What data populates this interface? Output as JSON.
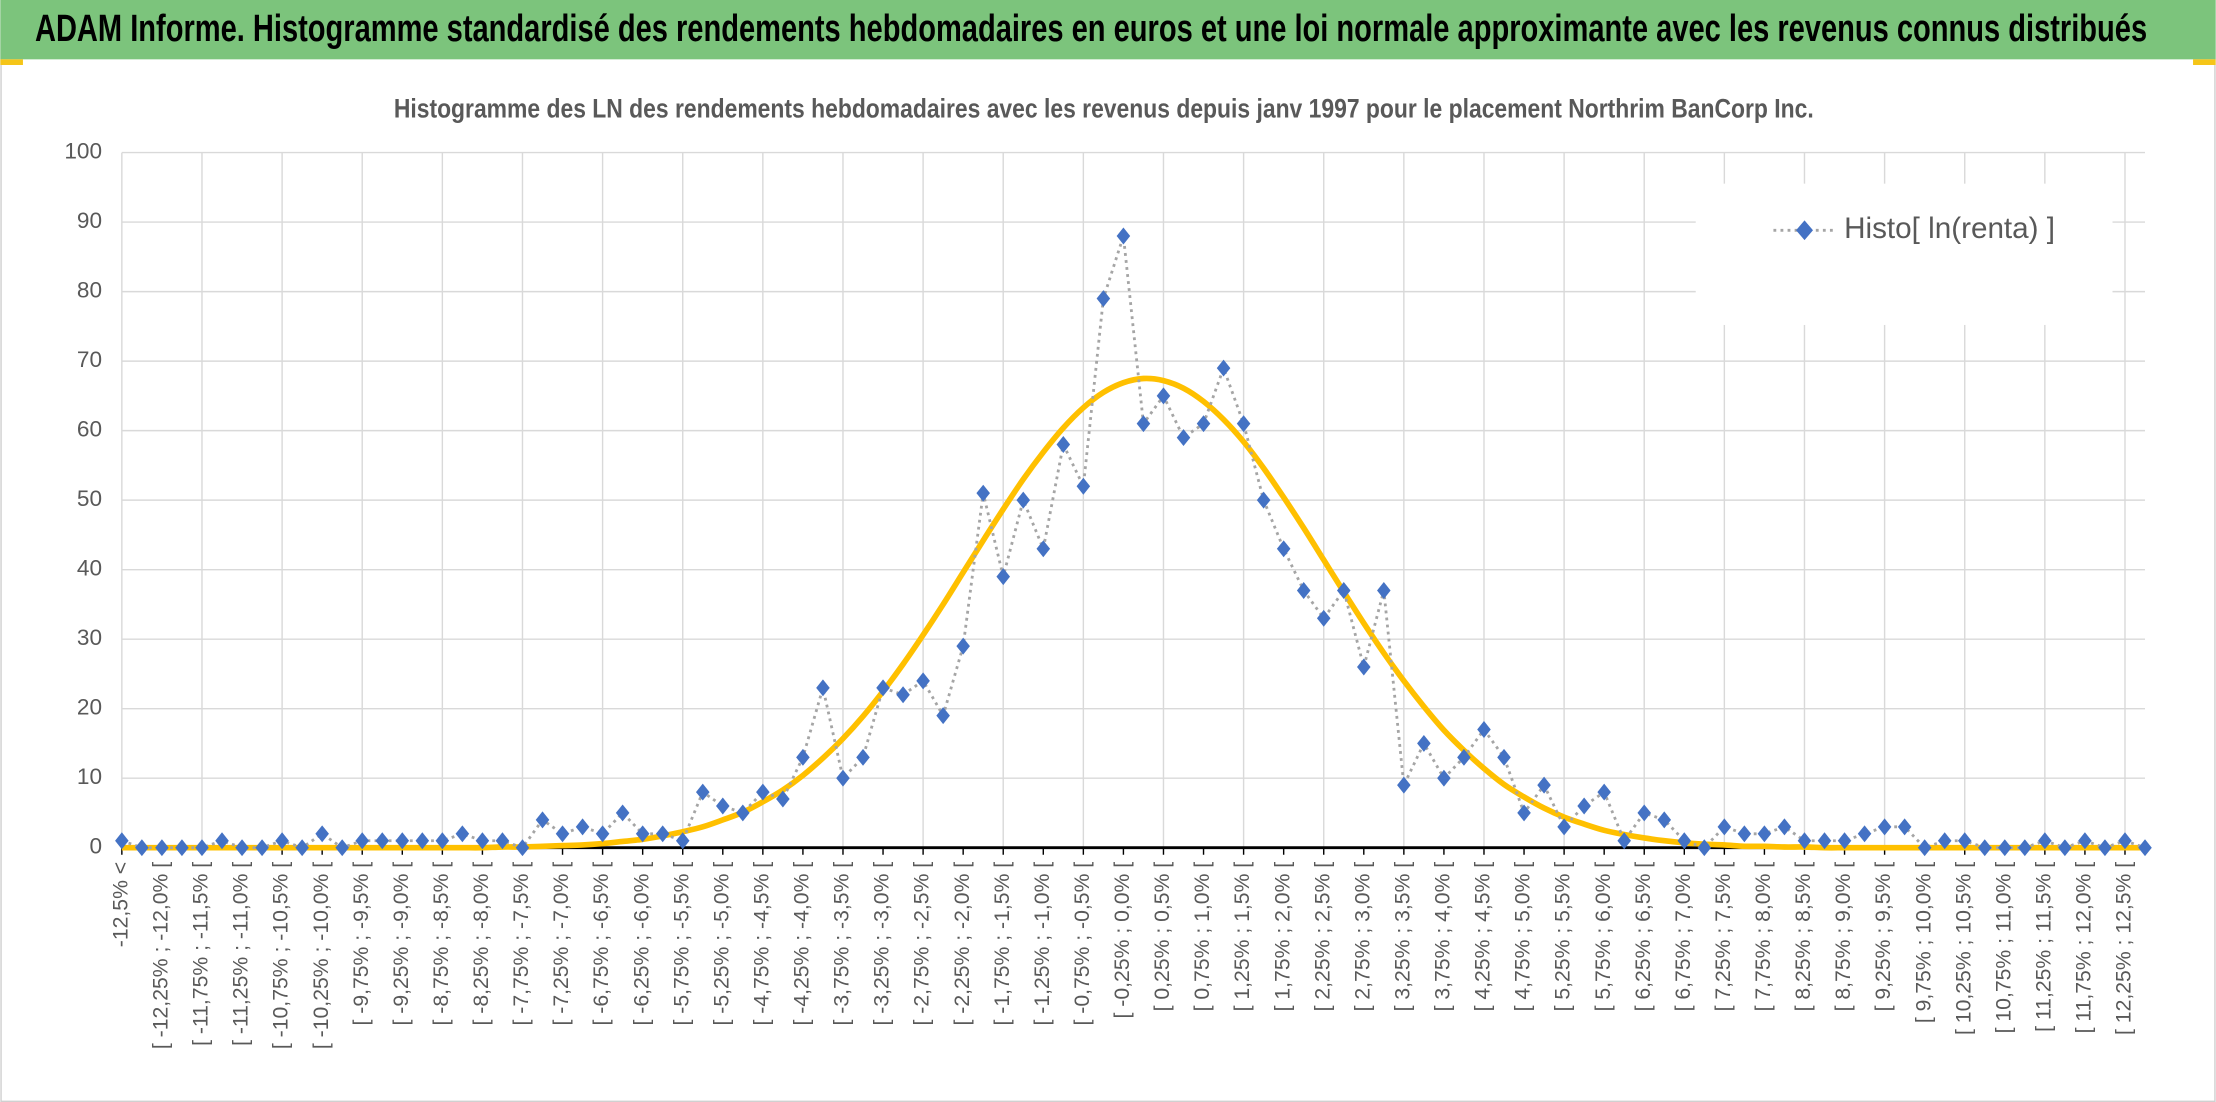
{
  "chart_data": {
    "type": "line",
    "header": "ADAM Informe. Histogramme standardisé des rendements hebdomadaires en euros et une loi normale approximante avec les revenus connus distribués",
    "title": "Histogramme des LN des rendements hebdomadaires avec les revenus depuis janv 1997 pour le placement Northrim BanCorp Inc.",
    "categories": [
      "-12,5% <",
      null,
      "[ -12,25% ; -12,0% [",
      null,
      "[ -11,75% ; -11,5% [",
      null,
      "[ -11,25% ; -11,0% [",
      null,
      "[ -10,75% ; -10,5% [",
      null,
      "[ -10,25% ; -10,0% [",
      null,
      "[ -9,75% ; -9,5% [",
      null,
      "[ -9,25% ; -9,0% [",
      null,
      "[ -8,75% ; -8,5% [",
      null,
      "[ -8,25% ; -8,0% [",
      null,
      "[ -7,75% ; -7,5% [",
      null,
      "[ -7,25% ; -7,0% [",
      null,
      "[ -6,75% ; -6,5% [",
      null,
      "[ -6,25% ; -6,0% [",
      null,
      "[ -5,75% ; -5,5% [",
      null,
      "[ -5,25% ; -5,0% [",
      null,
      "[ -4,75% ; -4,5% [",
      null,
      "[ -4,25% ; -4,0% [",
      null,
      "[ -3,75% ; -3,5% [",
      null,
      "[ -3,25% ; -3,0% [",
      null,
      "[ -2,75% ; -2,5% [",
      null,
      "[ -2,25% ; -2,0% [",
      null,
      "[ -1,75% ; -1,5% [",
      null,
      "[ -1,25% ; -1,0% [",
      null,
      "[ -0,75% ; -0,5% [",
      null,
      "[ -0,25% ; 0,0% [",
      null,
      "[ 0,25% ; 0,5% [",
      null,
      "[ 0,75% ; 1,0% [",
      null,
      "[ 1,25% ; 1,5% [",
      null,
      "[ 1,75% ; 2,0% [",
      null,
      "[ 2,25% ; 2,5% [",
      null,
      "[ 2,75% ; 3,0% [",
      null,
      "[ 3,25% ; 3,5% [",
      null,
      "[ 3,75% ; 4,0% [",
      null,
      "[ 4,25% ; 4,5% [",
      null,
      "[ 4,75% ; 5,0% [",
      null,
      "[ 5,25% ; 5,5% [",
      null,
      "[ 5,75% ; 6,0% [",
      null,
      "[ 6,25% ; 6,5% [",
      null,
      "[ 6,75% ; 7,0% [",
      null,
      "[ 7,25% ; 7,5% [",
      null,
      "[ 7,75% ; 8,0% [",
      null,
      "[ 8,25% ; 8,5% [",
      null,
      "[ 8,75% ; 9,0% [",
      null,
      "[ 9,25% ; 9,5% [",
      null,
      "[ 9,75% ; 10,0% [",
      null,
      "[ 10,25% ; 10,5% [",
      null,
      "[ 10,75% ; 11,0% [",
      null,
      "[ 11,25% ; 11,5% [",
      null,
      "[ 11,75% ; 12,0% [",
      null,
      "[ 12,25% ; 12,5% [",
      null
    ],
    "series": [
      {
        "name": "Histo[ ln(renta) ]",
        "color": "#4472c4",
        "line_color": "#a5a5a5",
        "marker": "diamond",
        "values": [
          1,
          0,
          0,
          0,
          0,
          1,
          0,
          0,
          1,
          0,
          2,
          0,
          1,
          1,
          1,
          1,
          1,
          2,
          1,
          1,
          0,
          4,
          2,
          3,
          2,
          5,
          2,
          2,
          1,
          8,
          6,
          5,
          8,
          7,
          13,
          23,
          10,
          13,
          23,
          22,
          24,
          19,
          29,
          51,
          39,
          50,
          43,
          58,
          52,
          79,
          88,
          61,
          65,
          59,
          61,
          69,
          61,
          50,
          43,
          37,
          33,
          37,
          26,
          37,
          9,
          15,
          10,
          13,
          17,
          13,
          5,
          9,
          3,
          6,
          8,
          1,
          5,
          4,
          1,
          0,
          3,
          2,
          2,
          3,
          1,
          1,
          1,
          2,
          3,
          3,
          0,
          1,
          1,
          0,
          0,
          0,
          1,
          0,
          1,
          0,
          1,
          0
        ]
      },
      {
        "color": "#ffc000",
        "smooth": true,
        "values": [
          0,
          0,
          0,
          0,
          0,
          0,
          0,
          0,
          0,
          0,
          0,
          0,
          0,
          0,
          0,
          0,
          0,
          0,
          0,
          0.1,
          0.1,
          0.2,
          0.3,
          0.4,
          0.6,
          0.9,
          1.2,
          1.7,
          2.3,
          3.0,
          4.0,
          5.1,
          6.6,
          8.3,
          10.4,
          12.9,
          15.7,
          18.9,
          22.5,
          26.4,
          30.6,
          35.0,
          39.6,
          44.2,
          48.7,
          53.0,
          56.9,
          60.4,
          63.3,
          65.5,
          66.9,
          67.5,
          67.2,
          66.1,
          64.2,
          61.6,
          58.4,
          54.6,
          50.4,
          46.0,
          41.4,
          36.8,
          32.3,
          28.0,
          24.0,
          20.3,
          16.9,
          14.0,
          11.4,
          9.1,
          7.3,
          5.7,
          4.4,
          3.4,
          2.5,
          1.9,
          1.4,
          1.0,
          0.7,
          0.5,
          0.4,
          0.2,
          0.2,
          0.1,
          0.1,
          0,
          0,
          0,
          0,
          0,
          0,
          0,
          0,
          0,
          0,
          0,
          0,
          0,
          0,
          0,
          0,
          0
        ]
      }
    ],
    "ylim": [
      0,
      100
    ],
    "yticks": [
      0,
      10,
      20,
      30,
      40,
      50,
      60,
      70,
      80,
      90,
      100
    ],
    "grid": true,
    "legend": "upper right"
  }
}
